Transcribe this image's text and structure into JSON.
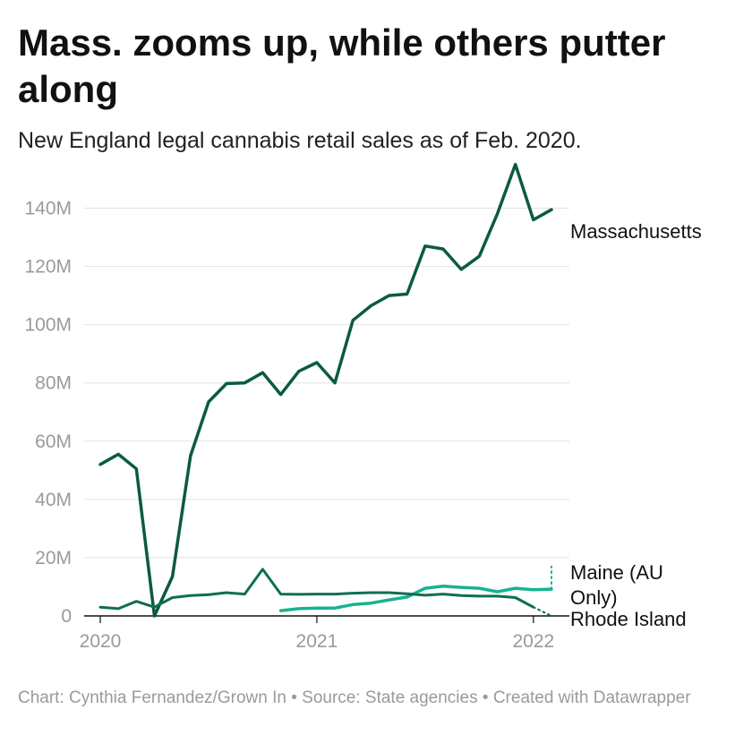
{
  "header": {
    "title": "Mass. zooms up, while others putter along",
    "subtitle": "New England legal cannabis retail sales as of Feb. 2020."
  },
  "footer": {
    "chart_credit": "Chart: Cynthia Fernandez/Grown In",
    "separator": "•",
    "source": "Source: State agencies",
    "created_with": "Created with Datawrapper"
  },
  "chart_data": {
    "type": "line",
    "title": "Mass. zooms up, while others putter along",
    "subtitle": "New England legal cannabis retail sales as of Feb. 2020.",
    "x_unit": "month",
    "x_ticks": [
      {
        "label": "2020",
        "value": "2020-01"
      },
      {
        "label": "2021",
        "value": "2021-01"
      },
      {
        "label": "2022",
        "value": "2022-01"
      }
    ],
    "xlim": [
      "2020-01",
      "2022-02"
    ],
    "y_ticks": [
      {
        "label": "0",
        "value": 0
      },
      {
        "label": "20M",
        "value": 20000000
      },
      {
        "label": "40M",
        "value": 40000000
      },
      {
        "label": "60M",
        "value": 60000000
      },
      {
        "label": "80M",
        "value": 80000000
      },
      {
        "label": "100M",
        "value": 100000000
      },
      {
        "label": "120M",
        "value": 120000000
      },
      {
        "label": "140M",
        "value": 140000000
      }
    ],
    "ylim": [
      0,
      150000000
    ],
    "grid": true,
    "legend": "direct labels at line ends (right)",
    "series": [
      {
        "name": "Massachusetts",
        "color": "#0b5a43",
        "line_width": 3.5,
        "points": [
          [
            "2020-01",
            52000000
          ],
          [
            "2020-02",
            55500000
          ],
          [
            "2020-03",
            50500000
          ],
          [
            "2020-04",
            0
          ],
          [
            "2020-05",
            13500000
          ],
          [
            "2020-06",
            55000000
          ],
          [
            "2020-07",
            73500000
          ],
          [
            "2020-08",
            79800000
          ],
          [
            "2020-09",
            80000000
          ],
          [
            "2020-10",
            83500000
          ],
          [
            "2020-11",
            76000000
          ],
          [
            "2020-12",
            84000000
          ],
          [
            "2021-01",
            87000000
          ],
          [
            "2021-02",
            80000000
          ],
          [
            "2021-03",
            101500000
          ],
          [
            "2021-04",
            106500000
          ],
          [
            "2021-05",
            110000000
          ],
          [
            "2021-06",
            110500000
          ],
          [
            "2021-07",
            127000000
          ],
          [
            "2021-08",
            126000000
          ],
          [
            "2021-09",
            119000000
          ],
          [
            "2021-10",
            123500000
          ],
          [
            "2021-11",
            138000000
          ],
          [
            "2021-12",
            155000000
          ],
          [
            "2022-01",
            136000000
          ],
          [
            "2022-02",
            139500000
          ]
        ]
      },
      {
        "name": "Maine (AU Only)",
        "label_lines": [
          "Maine (AU",
          "Only)"
        ],
        "color": "#17b38f",
        "line_width": 3.5,
        "points": [
          [
            "2020-11",
            1800000
          ],
          [
            "2020-12",
            2500000
          ],
          [
            "2021-01",
            2700000
          ],
          [
            "2021-02",
            2700000
          ],
          [
            "2021-03",
            3900000
          ],
          [
            "2021-04",
            4400000
          ],
          [
            "2021-05",
            5500000
          ],
          [
            "2021-06",
            6500000
          ],
          [
            "2021-07",
            9500000
          ],
          [
            "2021-08",
            10200000
          ],
          [
            "2021-09",
            9800000
          ],
          [
            "2021-10",
            9500000
          ],
          [
            "2021-11",
            8300000
          ],
          [
            "2021-12",
            9500000
          ],
          [
            "2022-01",
            9000000
          ],
          [
            "2022-02",
            9200000
          ]
        ],
        "dotted_extension": [
          [
            "2022-02",
            9200000
          ],
          [
            "2022-02",
            17000000
          ]
        ]
      },
      {
        "name": "Rhode Island",
        "color": "#0e6e54",
        "line_width": 3,
        "points": [
          [
            "2020-01",
            3000000
          ],
          [
            "2020-02",
            2500000
          ],
          [
            "2020-03",
            5000000
          ],
          [
            "2020-04",
            3000000
          ],
          [
            "2020-05",
            6300000
          ],
          [
            "2020-06",
            7000000
          ],
          [
            "2020-07",
            7300000
          ],
          [
            "2020-08",
            8000000
          ],
          [
            "2020-09",
            7500000
          ],
          [
            "2020-10",
            16000000
          ],
          [
            "2020-11",
            7500000
          ],
          [
            "2020-12",
            7400000
          ],
          [
            "2021-01",
            7500000
          ],
          [
            "2021-02",
            7500000
          ],
          [
            "2021-03",
            7800000
          ],
          [
            "2021-04",
            8000000
          ],
          [
            "2021-05",
            8000000
          ],
          [
            "2021-06",
            7600000
          ],
          [
            "2021-07",
            7100000
          ],
          [
            "2021-08",
            7500000
          ],
          [
            "2021-09",
            7000000
          ],
          [
            "2021-10",
            6800000
          ],
          [
            "2021-11",
            6800000
          ],
          [
            "2021-12",
            6300000
          ],
          [
            "2022-01",
            3000000
          ]
        ],
        "dotted_extension": [
          [
            "2022-01",
            3000000
          ],
          [
            "2022-02",
            0
          ]
        ]
      }
    ]
  }
}
